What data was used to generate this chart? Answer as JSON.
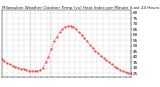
{
  "title": "Milwaukee Weather Outdoor Temp (vs) Heat Index per Minute (Last 24 Hours)",
  "line_color": "#ff0000",
  "bg_color": "#ffffff",
  "grid_color": "#cccccc",
  "vline_positions": [
    0.22,
    0.37
  ],
  "vline_color": "#999999",
  "ylim": [
    22,
    82
  ],
  "yticks": [
    25,
    30,
    35,
    40,
    45,
    50,
    55,
    60,
    65,
    70,
    75,
    80
  ],
  "data_y": [
    38,
    36,
    34,
    33,
    32,
    31,
    30,
    29,
    29,
    28,
    27,
    27,
    27,
    27,
    28,
    30,
    35,
    40,
    47,
    54,
    58,
    62,
    65,
    67,
    68,
    68,
    67,
    65,
    62,
    60,
    57,
    54,
    51,
    48,
    45,
    43,
    41,
    39,
    37,
    35,
    33,
    31,
    30,
    28,
    27,
    26,
    25,
    25
  ],
  "title_fontsize": 3.0,
  "tick_fontsize": 3.0,
  "line_width": 0.5,
  "marker_size": 0.8
}
